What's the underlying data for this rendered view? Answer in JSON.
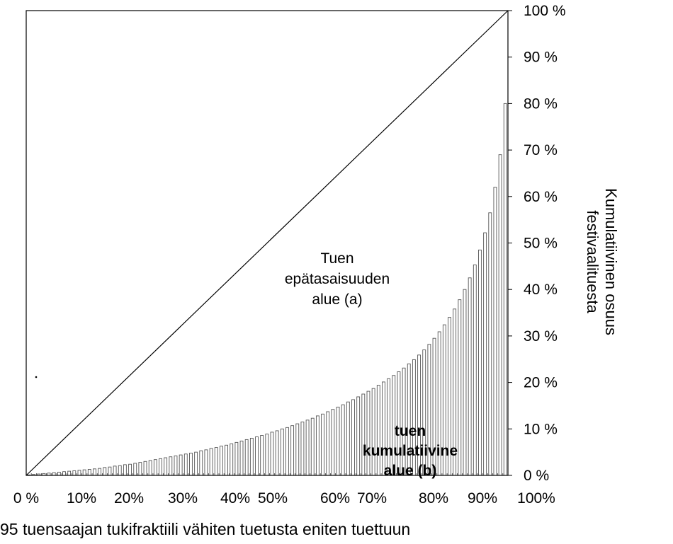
{
  "chart_data": {
    "type": "bar",
    "title": "",
    "xlabel": "95 tuensaajan tukifraktiili vähiten tuetusta eniten tuettuun",
    "ylabel": [
      "Kumulatiivinen osuus",
      "festivaalituesta"
    ],
    "x_tick_labels": [
      "0 %",
      "10%",
      "20%",
      "30%",
      "40%",
      "50%",
      "60%",
      "70%",
      "80%",
      "90%",
      "100%"
    ],
    "y_tick_labels": [
      "0 %",
      "10 %",
      "20 %",
      "30 %",
      "40 %",
      "50 %",
      "60 %",
      "70 %",
      "80 %",
      "90 %",
      "100 %"
    ],
    "xlim": [
      0,
      100
    ],
    "ylim": [
      0,
      100
    ],
    "n_bars": 95,
    "series": [
      {
        "type": "bar",
        "values": [
          0.1,
          0.2,
          0.3,
          0.4,
          0.5,
          0.6,
          0.7,
          0.8,
          0.9,
          1.0,
          1.1,
          1.2,
          1.3,
          1.4,
          1.5,
          1.7,
          1.8,
          2.0,
          2.1,
          2.3,
          2.4,
          2.6,
          2.8,
          3.0,
          3.2,
          3.4,
          3.6,
          3.8,
          4.0,
          4.2,
          4.4,
          4.6,
          4.8,
          5.0,
          5.3,
          5.5,
          5.8,
          6.0,
          6.3,
          6.5,
          6.8,
          7.1,
          7.4,
          7.7,
          8.0,
          8.3,
          8.6,
          8.9,
          9.3,
          9.6,
          10.0,
          10.3,
          10.7,
          11.1,
          11.5,
          11.9,
          12.3,
          12.8,
          13.2,
          13.7,
          14.2,
          14.7,
          15.2,
          15.8,
          16.3,
          16.9,
          17.5,
          18.1,
          18.7,
          19.4,
          20.1,
          20.8,
          21.5,
          22.3,
          23.1,
          24.0,
          24.9,
          25.9,
          27.0,
          28.2,
          29.5,
          30.9,
          32.4,
          34.0,
          35.8,
          37.8,
          40.0,
          42.5,
          45.3,
          48.5,
          52.2,
          56.5,
          62.0,
          69.0,
          80.0
        ]
      },
      {
        "type": "line",
        "x": [
          0,
          100
        ],
        "y": [
          0,
          100
        ]
      }
    ],
    "annotations": [
      {
        "lines": [
          "Tuen",
          "epätasaisuuden",
          "alue (a)"
        ],
        "bold": false
      },
      {
        "lines": [
          "tuen",
          "kumulatiivine",
          "alue (b)"
        ],
        "bold": true
      }
    ],
    "grid": false,
    "legend": "none"
  }
}
